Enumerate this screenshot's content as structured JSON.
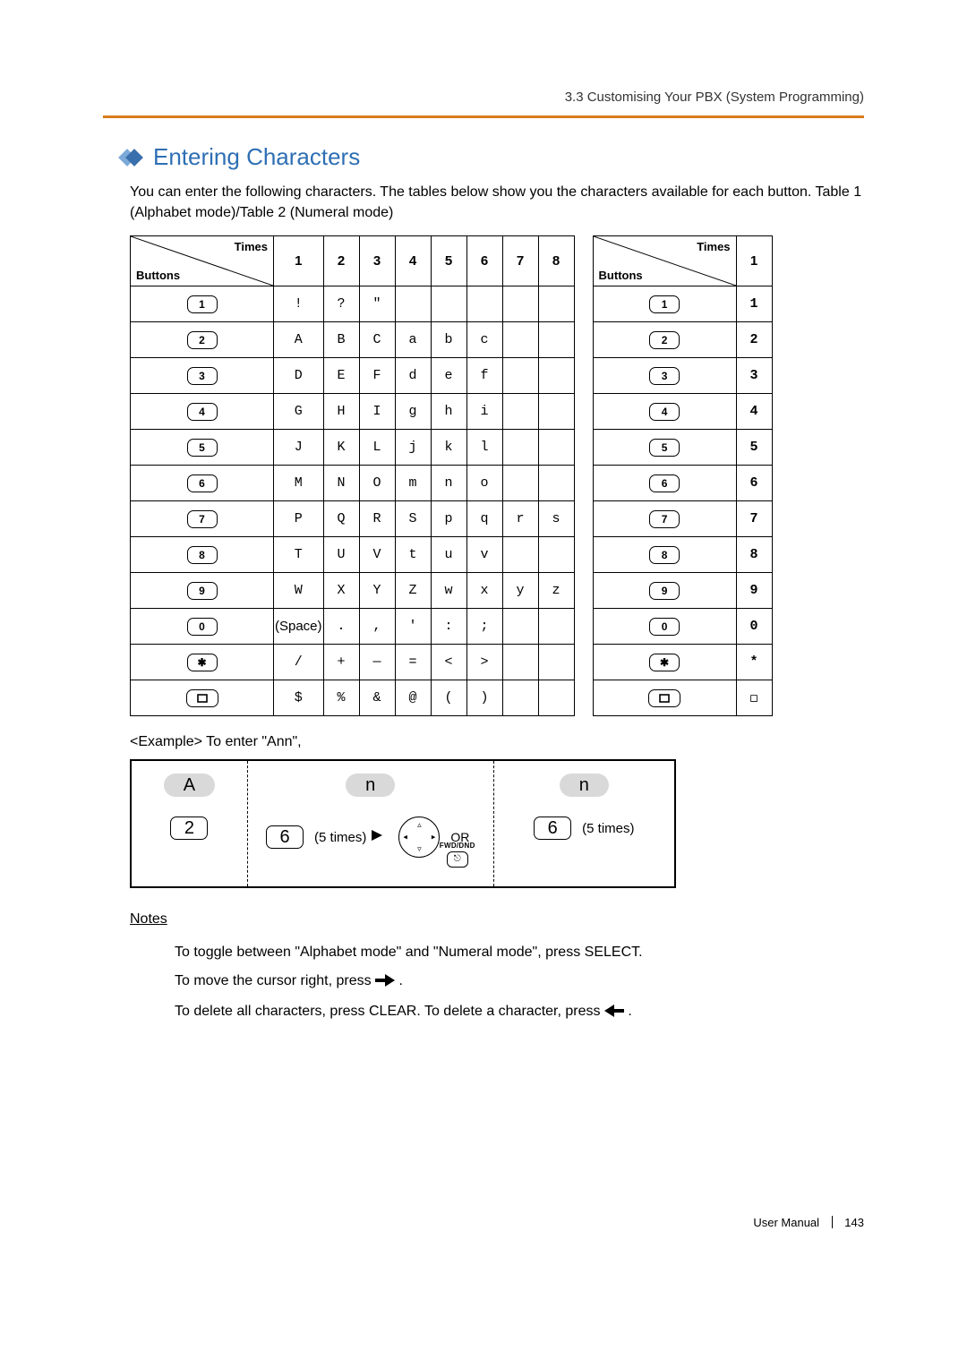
{
  "header": {
    "text": "3.3 Customising Your PBX (System Programming)"
  },
  "colors": {
    "accent": "#2e6fb4",
    "rule": "#d87c1c",
    "chip_bg": "#d9d9d9"
  },
  "section": {
    "title": "Entering Characters",
    "intro": "You can enter the following characters. The tables below show you the characters available for each button. Table 1 (Alphabet mode)/Table 2 (Numeral mode)"
  },
  "table_labels": {
    "times": "Times",
    "buttons": "Buttons"
  },
  "table1": {
    "cols": [
      "1",
      "2",
      "3",
      "4",
      "5",
      "6",
      "7",
      "8"
    ],
    "rows": [
      {
        "btn": "1",
        "cells": [
          "!",
          "?",
          "\"",
          "",
          "",
          "",
          "",
          ""
        ]
      },
      {
        "btn": "2",
        "cells": [
          "A",
          "B",
          "C",
          "a",
          "b",
          "c",
          "",
          ""
        ]
      },
      {
        "btn": "3",
        "cells": [
          "D",
          "E",
          "F",
          "d",
          "e",
          "f",
          "",
          ""
        ]
      },
      {
        "btn": "4",
        "cells": [
          "G",
          "H",
          "I",
          "g",
          "h",
          "i",
          "",
          ""
        ]
      },
      {
        "btn": "5",
        "cells": [
          "J",
          "K",
          "L",
          "j",
          "k",
          "l",
          "",
          ""
        ]
      },
      {
        "btn": "6",
        "cells": [
          "M",
          "N",
          "O",
          "m",
          "n",
          "o",
          "",
          ""
        ]
      },
      {
        "btn": "7",
        "cells": [
          "P",
          "Q",
          "R",
          "S",
          "p",
          "q",
          "r",
          "s"
        ]
      },
      {
        "btn": "8",
        "cells": [
          "T",
          "U",
          "V",
          "t",
          "u",
          "v",
          "",
          ""
        ]
      },
      {
        "btn": "9",
        "cells": [
          "W",
          "X",
          "Y",
          "Z",
          "w",
          "x",
          "y",
          "z"
        ]
      },
      {
        "btn": "0",
        "cells": [
          "(Space)",
          ".",
          ",",
          "'",
          ":",
          ";",
          "",
          ""
        ]
      },
      {
        "btn": "*",
        "cells": [
          "/",
          "+",
          "—",
          "=",
          "<",
          ">",
          "",
          ""
        ]
      },
      {
        "btn": "#",
        "cells": [
          "$",
          "%",
          "&",
          "@",
          "(",
          ")",
          "",
          ""
        ]
      }
    ]
  },
  "table2": {
    "cols": [
      "1"
    ],
    "rows": [
      {
        "btn": "1",
        "cells": [
          "1"
        ]
      },
      {
        "btn": "2",
        "cells": [
          "2"
        ]
      },
      {
        "btn": "3",
        "cells": [
          "3"
        ]
      },
      {
        "btn": "4",
        "cells": [
          "4"
        ]
      },
      {
        "btn": "5",
        "cells": [
          "5"
        ]
      },
      {
        "btn": "6",
        "cells": [
          "6"
        ]
      },
      {
        "btn": "7",
        "cells": [
          "7"
        ]
      },
      {
        "btn": "8",
        "cells": [
          "8"
        ]
      },
      {
        "btn": "9",
        "cells": [
          "9"
        ]
      },
      {
        "btn": "0",
        "cells": [
          "0"
        ]
      },
      {
        "btn": "*",
        "cells": [
          "*"
        ]
      },
      {
        "btn": "#",
        "cells": [
          "◻"
        ]
      }
    ]
  },
  "example": {
    "label": "<Example> To enter \"Ann\",",
    "col1": {
      "char": "A",
      "key": "2"
    },
    "col2": {
      "char": "n",
      "key": "6",
      "times": "(5 times)",
      "or": "OR",
      "fwd": "FWD/DND"
    },
    "col3": {
      "char": "n",
      "key": "6",
      "times": "(5 times)"
    }
  },
  "notes": {
    "heading": "Notes",
    "n1": "To toggle between \"Alphabet mode\" and \"Numeral mode\", press SELECT.",
    "n2a": "To move the cursor right, press ",
    "n2b": ".",
    "n3a": "To delete all characters, press CLEAR. To delete a character, press ",
    "n3b": "."
  },
  "footer": {
    "label": "User Manual",
    "page": "143"
  }
}
